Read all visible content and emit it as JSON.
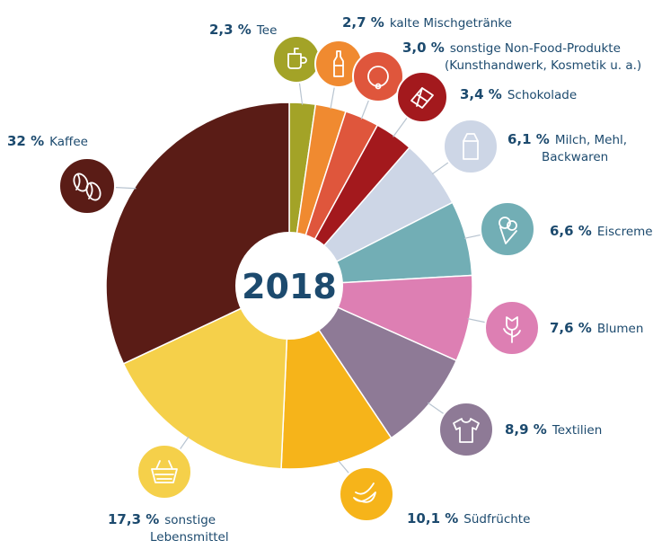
{
  "chart_data": {
    "type": "pie",
    "variant": "donut",
    "center_label": "2018",
    "unit": "%",
    "slices": [
      {
        "pct_label": "2,3 %",
        "name_lines": [
          "Tee"
        ],
        "value": 2.3,
        "color": "#a3a327",
        "icon": "tea-mug-icon"
      },
      {
        "pct_label": "2,7 %",
        "name_lines": [
          "kalte Mischgetränke"
        ],
        "value": 2.7,
        "color": "#f08a30",
        "icon": "bottle-icon"
      },
      {
        "pct_label": "3,0 %",
        "name_lines": [
          "sonstige Non-Food-Produkte",
          "(Kunsthandwerk, Kosmetik u. a.)"
        ],
        "value": 3.0,
        "color": "#df563c",
        "icon": "bracelet-icon"
      },
      {
        "pct_label": "3,4 %",
        "name_lines": [
          "Schokolade"
        ],
        "value": 3.4,
        "color": "#a3191d",
        "icon": "chocolate-icon"
      },
      {
        "pct_label": "6,1 %",
        "name_lines": [
          "Milch, Mehl,",
          "Backwaren"
        ],
        "value": 6.1,
        "color": "#cdd6e6",
        "icon": "milk-carton-icon"
      },
      {
        "pct_label": "6,6 %",
        "name_lines": [
          "Eiscreme"
        ],
        "value": 6.6,
        "color": "#72aeb5",
        "icon": "ice-cream-icon"
      },
      {
        "pct_label": "7,6 %",
        "name_lines": [
          "Blumen"
        ],
        "value": 7.6,
        "color": "#dd7fb3",
        "icon": "rose-icon"
      },
      {
        "pct_label": "8,9 %",
        "name_lines": [
          "Textilien"
        ],
        "value": 8.9,
        "color": "#8e7a96",
        "icon": "shirt-icon"
      },
      {
        "pct_label": "10,1 %",
        "name_lines": [
          "Südfrüchte"
        ],
        "value": 10.1,
        "color": "#f6b41a",
        "icon": "banana-icon"
      },
      {
        "pct_label": "17,3 %",
        "name_lines": [
          "sonstige",
          "Lebensmittel"
        ],
        "value": 17.3,
        "color": "#f5d04a",
        "icon": "basket-icon"
      },
      {
        "pct_label": "32 %",
        "name_lines": [
          "Kaffee"
        ],
        "value": 32.0,
        "color": "#5a1c16",
        "icon": "coffee-beans-icon"
      }
    ]
  }
}
